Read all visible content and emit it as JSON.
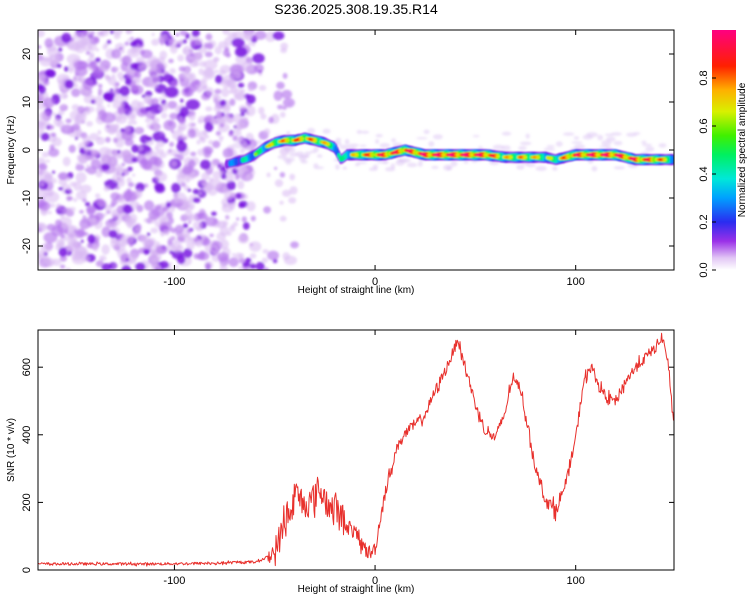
{
  "title": "S236.2025.308.19.35.R14",
  "chart_data": [
    {
      "type": "heatmap",
      "xlabel": "Height of straight line (km)",
      "ylabel": "Frequency (Hz)",
      "xlim": [
        -168,
        149
      ],
      "ylim": [
        -25,
        25
      ],
      "x_ticks": [
        -100,
        0,
        100
      ],
      "y_ticks": [
        -20,
        -10,
        0,
        10,
        20
      ],
      "noise_region": {
        "x_range": [
          -168,
          -60
        ],
        "y_range": [
          -25,
          25
        ],
        "amplitude": 0.1
      },
      "ridge": {
        "x": [
          -74,
          -70,
          -65,
          -60,
          -55,
          -50,
          -45,
          -40,
          -35,
          -30,
          -25,
          -20,
          -17,
          -14,
          -10,
          -5,
          0,
          5,
          10,
          15,
          20,
          25,
          40,
          55,
          65,
          75,
          85,
          90,
          95,
          100,
          110,
          120,
          130,
          140,
          149
        ],
        "frequency": [
          -3,
          -2.5,
          -2,
          -1,
          0.5,
          1.5,
          2,
          2,
          2.5,
          2,
          1.5,
          0.5,
          -2,
          -1,
          -1,
          -1,
          -1,
          -1,
          -0.5,
          0,
          -0.5,
          -1,
          -1,
          -1,
          -1.5,
          -1.5,
          -1.5,
          -2,
          -1.5,
          -1,
          -1,
          -1,
          -2,
          -2,
          -2
        ],
        "amplitude": [
          0.4,
          0.45,
          0.5,
          0.55,
          0.6,
          0.7,
          0.75,
          0.8,
          0.8,
          0.75,
          0.7,
          0.6,
          0.5,
          0.6,
          0.7,
          0.8,
          0.85,
          0.9,
          0.88,
          0.9,
          0.9,
          0.95,
          0.97,
          0.95,
          0.7,
          0.75,
          0.65,
          0.6,
          0.8,
          0.9,
          0.95,
          0.95,
          0.9,
          0.85,
          0.6
        ]
      },
      "colorbar": {
        "label": "Normalized spectral amplitude",
        "range": [
          0,
          1
        ],
        "ticks": [
          "0.0",
          "0.2",
          "0.4",
          "0.6",
          "0.8"
        ]
      }
    },
    {
      "type": "line",
      "xlabel": "Height of straight line (km)",
      "ylabel": "SNR (10 * v/v)",
      "xlim": [
        -168,
        149
      ],
      "ylim": [
        0,
        710
      ],
      "x_ticks": [
        -100,
        0,
        100
      ],
      "y_ticks": [
        0,
        200,
        400,
        600
      ],
      "series": [
        {
          "name": "SNR",
          "color": "#e8302c",
          "x": [
            -168,
            -140,
            -110,
            -80,
            -60,
            -55,
            -50,
            -46,
            -44,
            -42,
            -40,
            -36,
            -32,
            -28,
            -25,
            -22,
            -20,
            -17,
            -14,
            -10,
            -7,
            -4,
            -2,
            0,
            2,
            5,
            8,
            12,
            16,
            20,
            25,
            30,
            35,
            40,
            41,
            45,
            50,
            55,
            60,
            65,
            68,
            72,
            76,
            80,
            85,
            88,
            90,
            95,
            100,
            104,
            108,
            112,
            115,
            120,
            125,
            130,
            135,
            140,
            143,
            146,
            149
          ],
          "values": [
            18,
            18,
            18,
            20,
            24,
            34,
            52,
            120,
            180,
            150,
            230,
            200,
            200,
            240,
            210,
            180,
            190,
            160,
            130,
            110,
            80,
            55,
            50,
            65,
            130,
            230,
            300,
            380,
            410,
            430,
            460,
            530,
            590,
            660,
            690,
            600,
            490,
            410,
            390,
            470,
            560,
            550,
            430,
            300,
            210,
            185,
            180,
            250,
            390,
            560,
            600,
            540,
            510,
            500,
            560,
            600,
            630,
            660,
            690,
            620,
            410
          ]
        }
      ]
    }
  ]
}
